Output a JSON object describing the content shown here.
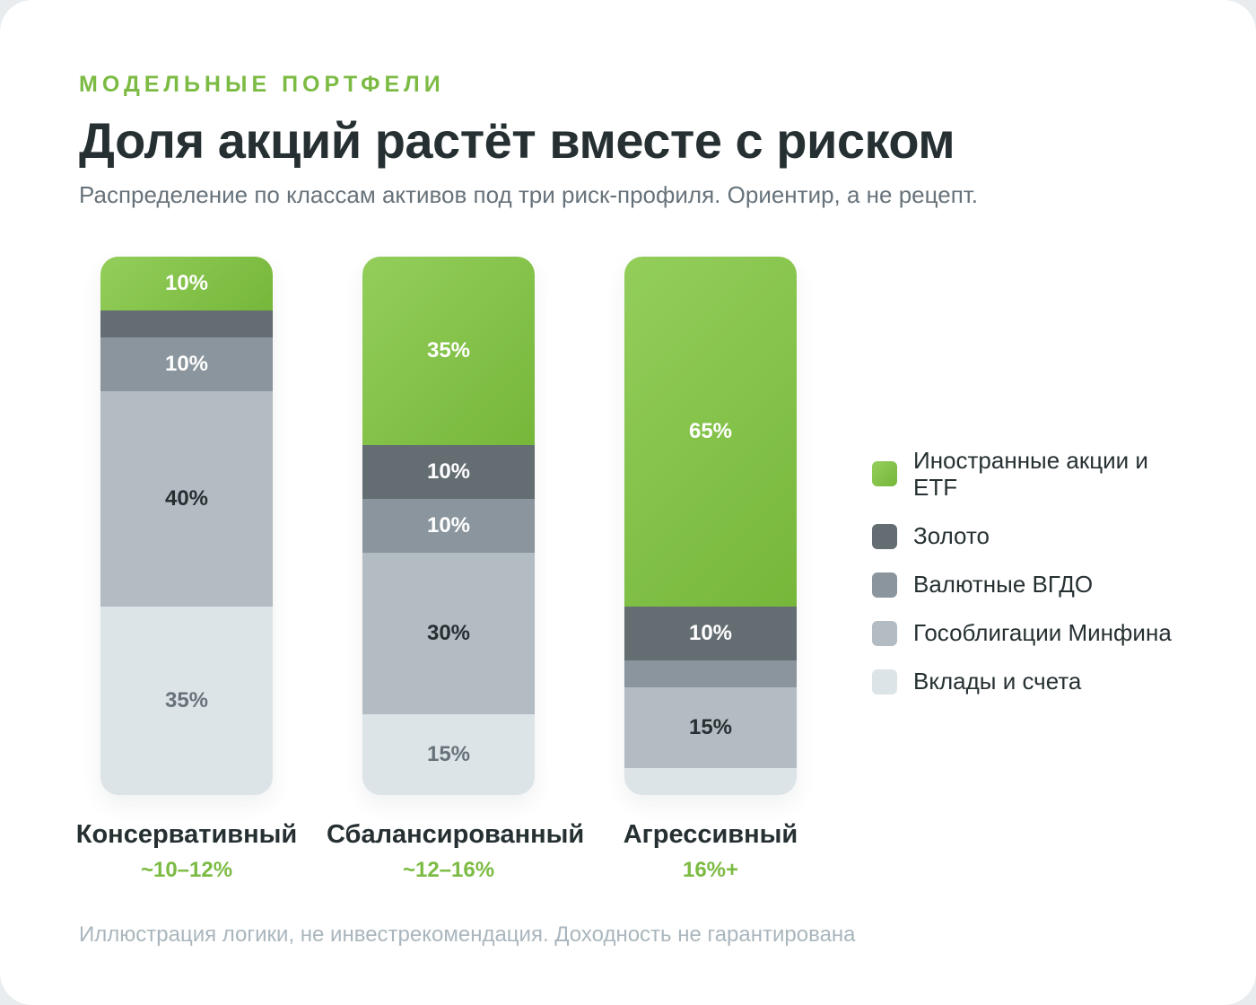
{
  "header": {
    "eyebrow": "МОДЕЛЬНЫЕ ПОРТФЕЛИ",
    "title": "Доля акций растёт вместе с риском",
    "subtitle": "Распределение по классам активов под три риск-профиля. Ориентир, а не рецепт."
  },
  "chart_data": {
    "type": "bar",
    "stacked": true,
    "orientation": "vertical",
    "ylim": [
      0,
      100
    ],
    "grid": false,
    "legend_position": "right",
    "categories": [
      "Консервативный",
      "Сбалансированный",
      "Агрессивный"
    ],
    "expected_return_labels": [
      "~10–12%",
      "~12–16%",
      "16%+"
    ],
    "series": [
      {
        "name": "Иностранные акции и ETF",
        "color": "#7cbb43",
        "values": [
          10,
          35,
          65
        ],
        "labels": [
          "10%",
          "35%",
          "65%"
        ]
      },
      {
        "name": "Золото",
        "color": "#646d72",
        "values": [
          5,
          10,
          10
        ],
        "labels": [
          "",
          "10%",
          "10%"
        ]
      },
      {
        "name": "Валютные ВГДО",
        "color": "#8a959d",
        "values": [
          10,
          10,
          5
        ],
        "labels": [
          "10%",
          "10%",
          ""
        ]
      },
      {
        "name": "Гособлигации Минфина",
        "color": "#b3bcc2",
        "values": [
          40,
          30,
          15
        ],
        "labels": [
          "40%",
          "30%",
          "15%"
        ]
      },
      {
        "name": "Вклады и счета",
        "color": "#dde4e8",
        "values": [
          35,
          15,
          5
        ],
        "labels": [
          "35%",
          "15%",
          ""
        ]
      }
    ],
    "label_colors": [
      "#ffffff",
      "#ffffff",
      "#ffffff",
      "#263032",
      "#67727a"
    ]
  },
  "footnote": "Иллюстрация логики, не инвестрекомендация. Доходность не гарантирована"
}
